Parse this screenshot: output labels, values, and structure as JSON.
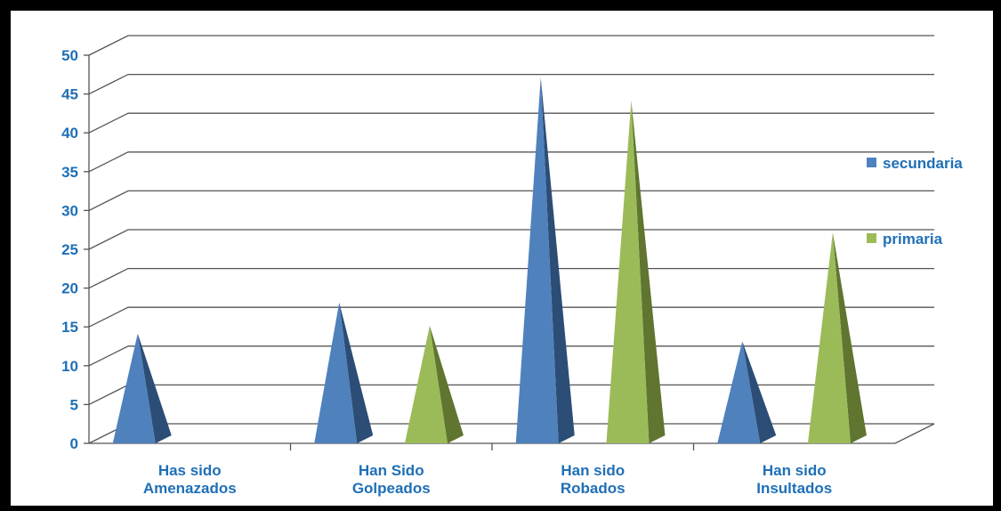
{
  "chart_data": {
    "type": "bar",
    "categories": [
      [
        "Has sido",
        "Amenazados"
      ],
      [
        "Han Sido",
        "Golpeados"
      ],
      [
        "Han sido",
        "Robados"
      ],
      [
        "Han sido",
        "Insultados"
      ]
    ],
    "series": [
      {
        "name": "secundaria",
        "values": [
          13,
          17,
          46,
          12
        ]
      },
      {
        "name": "primaria",
        "values": [
          0,
          14,
          43,
          26
        ]
      }
    ],
    "ylim": [
      0,
      50
    ],
    "ytick_step": 5,
    "y_ticks": [
      "0",
      "5",
      "10",
      "15",
      "20",
      "25",
      "30",
      "35",
      "40",
      "45",
      "50"
    ],
    "grid": true,
    "legend_position": "right",
    "title": "",
    "xlabel": "",
    "ylabel": ""
  },
  "colors": {
    "series_front": [
      "#4F81BD",
      "#9BBB59"
    ],
    "series_side": [
      "#2C4D75",
      "#5F7530"
    ],
    "text": "#1F6FB6",
    "grid": "#555555",
    "axis": "#555555"
  }
}
